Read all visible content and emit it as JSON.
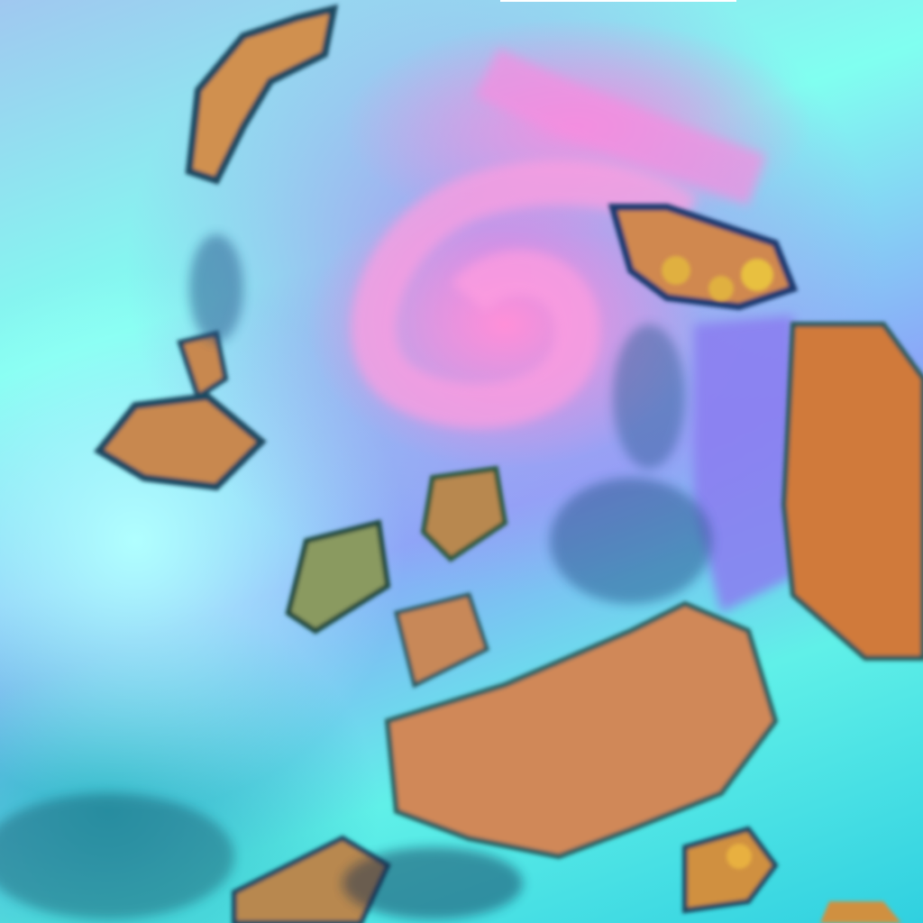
{
  "image": {
    "description_type": "false-color satellite imagery",
    "colors": {
      "cloud_high": "#80fff0",
      "cyclone_pink": "#ff8fd8",
      "violet": "#9a8cf0",
      "low_cloud_orange": "#d88a50",
      "dark_texture": "#1a4a70",
      "convective_yellow": "#e8c040"
    }
  }
}
